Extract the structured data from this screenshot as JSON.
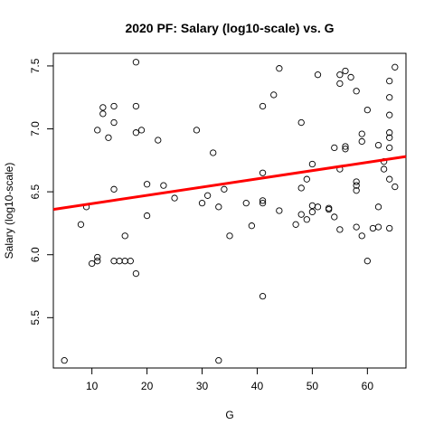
{
  "chart_data": {
    "type": "scatter",
    "title": "2020 PF: Salary (log10-scale) vs. G",
    "xlabel": "G",
    "ylabel": "Salary (log10-scale)",
    "xlim": [
      3,
      67
    ],
    "ylim": [
      5.1,
      7.6
    ],
    "x_ticks": [
      10,
      20,
      30,
      40,
      50,
      60
    ],
    "y_ticks": [
      5.5,
      6.0,
      6.5,
      7.0,
      7.5
    ],
    "grid": false,
    "legend": "none",
    "colors": {
      "points": "#000000",
      "fit_line": "#ff0000"
    },
    "fit_line": {
      "x": [
        3,
        67
      ],
      "y": [
        6.36,
        6.78
      ]
    },
    "points": [
      {
        "x": 5,
        "y": 5.16
      },
      {
        "x": 8,
        "y": 6.24
      },
      {
        "x": 9,
        "y": 6.38
      },
      {
        "x": 10,
        "y": 5.93
      },
      {
        "x": 11,
        "y": 5.95
      },
      {
        "x": 11,
        "y": 5.98
      },
      {
        "x": 11,
        "y": 6.99
      },
      {
        "x": 12,
        "y": 7.12
      },
      {
        "x": 12,
        "y": 7.17
      },
      {
        "x": 13,
        "y": 6.93
      },
      {
        "x": 14,
        "y": 7.18
      },
      {
        "x": 14,
        "y": 7.05
      },
      {
        "x": 14,
        "y": 6.52
      },
      {
        "x": 14,
        "y": 5.95
      },
      {
        "x": 15,
        "y": 5.95
      },
      {
        "x": 16,
        "y": 5.95
      },
      {
        "x": 16,
        "y": 6.15
      },
      {
        "x": 17,
        "y": 5.95
      },
      {
        "x": 18,
        "y": 5.85
      },
      {
        "x": 18,
        "y": 6.97
      },
      {
        "x": 18,
        "y": 7.18
      },
      {
        "x": 18,
        "y": 7.53
      },
      {
        "x": 19,
        "y": 6.99
      },
      {
        "x": 20,
        "y": 6.56
      },
      {
        "x": 20,
        "y": 6.31
      },
      {
        "x": 22,
        "y": 6.91
      },
      {
        "x": 23,
        "y": 6.55
      },
      {
        "x": 25,
        "y": 6.45
      },
      {
        "x": 29,
        "y": 6.99
      },
      {
        "x": 30,
        "y": 6.41
      },
      {
        "x": 31,
        "y": 6.47
      },
      {
        "x": 32,
        "y": 6.81
      },
      {
        "x": 33,
        "y": 6.38
      },
      {
        "x": 33,
        "y": 5.16
      },
      {
        "x": 34,
        "y": 6.52
      },
      {
        "x": 35,
        "y": 6.15
      },
      {
        "x": 38,
        "y": 6.41
      },
      {
        "x": 39,
        "y": 6.23
      },
      {
        "x": 41,
        "y": 6.41
      },
      {
        "x": 41,
        "y": 6.43
      },
      {
        "x": 41,
        "y": 6.65
      },
      {
        "x": 41,
        "y": 7.18
      },
      {
        "x": 41,
        "y": 5.67
      },
      {
        "x": 43,
        "y": 7.27
      },
      {
        "x": 44,
        "y": 7.48
      },
      {
        "x": 44,
        "y": 6.35
      },
      {
        "x": 47,
        "y": 6.24
      },
      {
        "x": 48,
        "y": 6.32
      },
      {
        "x": 48,
        "y": 6.53
      },
      {
        "x": 48,
        "y": 7.05
      },
      {
        "x": 49,
        "y": 6.28
      },
      {
        "x": 49,
        "y": 6.6
      },
      {
        "x": 50,
        "y": 6.34
      },
      {
        "x": 50,
        "y": 6.39
      },
      {
        "x": 50,
        "y": 6.72
      },
      {
        "x": 51,
        "y": 6.38
      },
      {
        "x": 51,
        "y": 7.43
      },
      {
        "x": 53,
        "y": 6.36
      },
      {
        "x": 53,
        "y": 6.37
      },
      {
        "x": 54,
        "y": 6.3
      },
      {
        "x": 54,
        "y": 6.85
      },
      {
        "x": 55,
        "y": 6.2
      },
      {
        "x": 55,
        "y": 6.68
      },
      {
        "x": 55,
        "y": 7.36
      },
      {
        "x": 55,
        "y": 7.43
      },
      {
        "x": 56,
        "y": 6.84
      },
      {
        "x": 56,
        "y": 6.86
      },
      {
        "x": 56,
        "y": 7.46
      },
      {
        "x": 57,
        "y": 7.41
      },
      {
        "x": 58,
        "y": 6.51
      },
      {
        "x": 58,
        "y": 6.55
      },
      {
        "x": 58,
        "y": 6.58
      },
      {
        "x": 58,
        "y": 6.22
      },
      {
        "x": 58,
        "y": 7.3
      },
      {
        "x": 59,
        "y": 6.15
      },
      {
        "x": 59,
        "y": 6.9
      },
      {
        "x": 59,
        "y": 6.96
      },
      {
        "x": 60,
        "y": 5.95
      },
      {
        "x": 60,
        "y": 7.15
      },
      {
        "x": 61,
        "y": 6.21
      },
      {
        "x": 62,
        "y": 6.22
      },
      {
        "x": 62,
        "y": 6.38
      },
      {
        "x": 62,
        "y": 6.87
      },
      {
        "x": 63,
        "y": 6.68
      },
      {
        "x": 63,
        "y": 6.74
      },
      {
        "x": 64,
        "y": 6.21
      },
      {
        "x": 64,
        "y": 6.6
      },
      {
        "x": 64,
        "y": 6.85
      },
      {
        "x": 64,
        "y": 6.93
      },
      {
        "x": 64,
        "y": 6.97
      },
      {
        "x": 64,
        "y": 7.11
      },
      {
        "x": 64,
        "y": 7.25
      },
      {
        "x": 64,
        "y": 7.38
      },
      {
        "x": 65,
        "y": 6.54
      },
      {
        "x": 65,
        "y": 7.49
      }
    ]
  }
}
